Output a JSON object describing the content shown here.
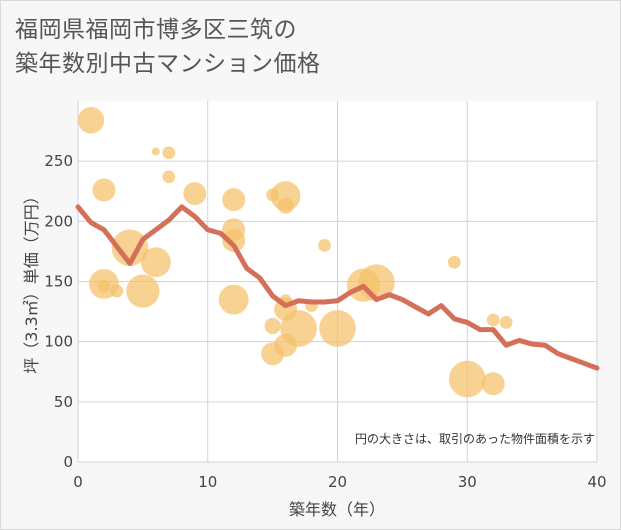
{
  "title_lines": [
    "福岡県福岡市博多区三筑の",
    "築年数別中古マンション価格"
  ],
  "chart_data": {
    "type": "scatter",
    "xlabel": "築年数（年）",
    "ylabel": "坪（3.3㎡）単価（万円）",
    "xlim": [
      0,
      40
    ],
    "ylim": [
      0,
      300
    ],
    "x_ticks": [
      0,
      10,
      20,
      30,
      40
    ],
    "y_ticks": [
      0,
      50,
      100,
      150,
      200,
      250
    ],
    "grid": true,
    "note": "円の大きさは、取引のあった物件面積を示す",
    "colors": {
      "bubble": "#f5c06a",
      "line": "#d4705a",
      "grid": "#c9d6e3"
    },
    "bubbles": [
      {
        "x": 1,
        "y": 284,
        "size": 3
      },
      {
        "x": 2,
        "y": 226,
        "size": 2.5
      },
      {
        "x": 2,
        "y": 148,
        "size": 3.5
      },
      {
        "x": 2,
        "y": 146,
        "size": 1
      },
      {
        "x": 3,
        "y": 142,
        "size": 1
      },
      {
        "x": 4,
        "y": 178,
        "size": 4.5
      },
      {
        "x": 5,
        "y": 142,
        "size": 4
      },
      {
        "x": 6,
        "y": 166,
        "size": 3.5
      },
      {
        "x": 6,
        "y": 258,
        "size": 0.3
      },
      {
        "x": 7,
        "y": 257,
        "size": 1
      },
      {
        "x": 7,
        "y": 237,
        "size": 1
      },
      {
        "x": 9,
        "y": 223,
        "size": 2.5
      },
      {
        "x": 12,
        "y": 218,
        "size": 2.5
      },
      {
        "x": 12,
        "y": 193,
        "size": 2.5
      },
      {
        "x": 12,
        "y": 184,
        "size": 2.5
      },
      {
        "x": 12,
        "y": 135,
        "size": 3.5
      },
      {
        "x": 15,
        "y": 222,
        "size": 1
      },
      {
        "x": 15,
        "y": 113,
        "size": 1.5
      },
      {
        "x": 15,
        "y": 90,
        "size": 2.5
      },
      {
        "x": 16,
        "y": 221,
        "size": 3.5
      },
      {
        "x": 16,
        "y": 213,
        "size": 1.5
      },
      {
        "x": 16,
        "y": 134,
        "size": 1
      },
      {
        "x": 16,
        "y": 127,
        "size": 2.5
      },
      {
        "x": 16,
        "y": 97,
        "size": 2.5
      },
      {
        "x": 17,
        "y": 111,
        "size": 4.5
      },
      {
        "x": 18,
        "y": 130,
        "size": 1
      },
      {
        "x": 19,
        "y": 180,
        "size": 1
      },
      {
        "x": 20,
        "y": 111,
        "size": 4.5
      },
      {
        "x": 22,
        "y": 147,
        "size": 4
      },
      {
        "x": 23,
        "y": 149,
        "size": 4.5
      },
      {
        "x": 29,
        "y": 166,
        "size": 1
      },
      {
        "x": 30,
        "y": 69,
        "size": 4.5
      },
      {
        "x": 32,
        "y": 118,
        "size": 1
      },
      {
        "x": 32,
        "y": 65,
        "size": 2.5
      },
      {
        "x": 33,
        "y": 116,
        "size": 1
      }
    ],
    "trend": {
      "x": [
        0,
        1,
        2,
        3,
        4,
        5,
        6,
        7,
        8,
        9,
        10,
        11,
        12,
        13,
        14,
        15,
        16,
        17,
        18,
        19,
        20,
        21,
        22,
        23,
        24,
        25,
        26,
        27,
        28,
        29,
        30,
        31,
        32,
        33,
        34,
        35,
        36,
        37,
        38,
        39,
        40
      ],
      "y": [
        212,
        199,
        193,
        179,
        165,
        185,
        193,
        201,
        212,
        204,
        193,
        190,
        180,
        161,
        153,
        138,
        130,
        134,
        133,
        133,
        134,
        141,
        146,
        135,
        139,
        135,
        129,
        123,
        130,
        119,
        116,
        110,
        110,
        97,
        101,
        98,
        97,
        90,
        86,
        82,
        78
      ]
    }
  }
}
